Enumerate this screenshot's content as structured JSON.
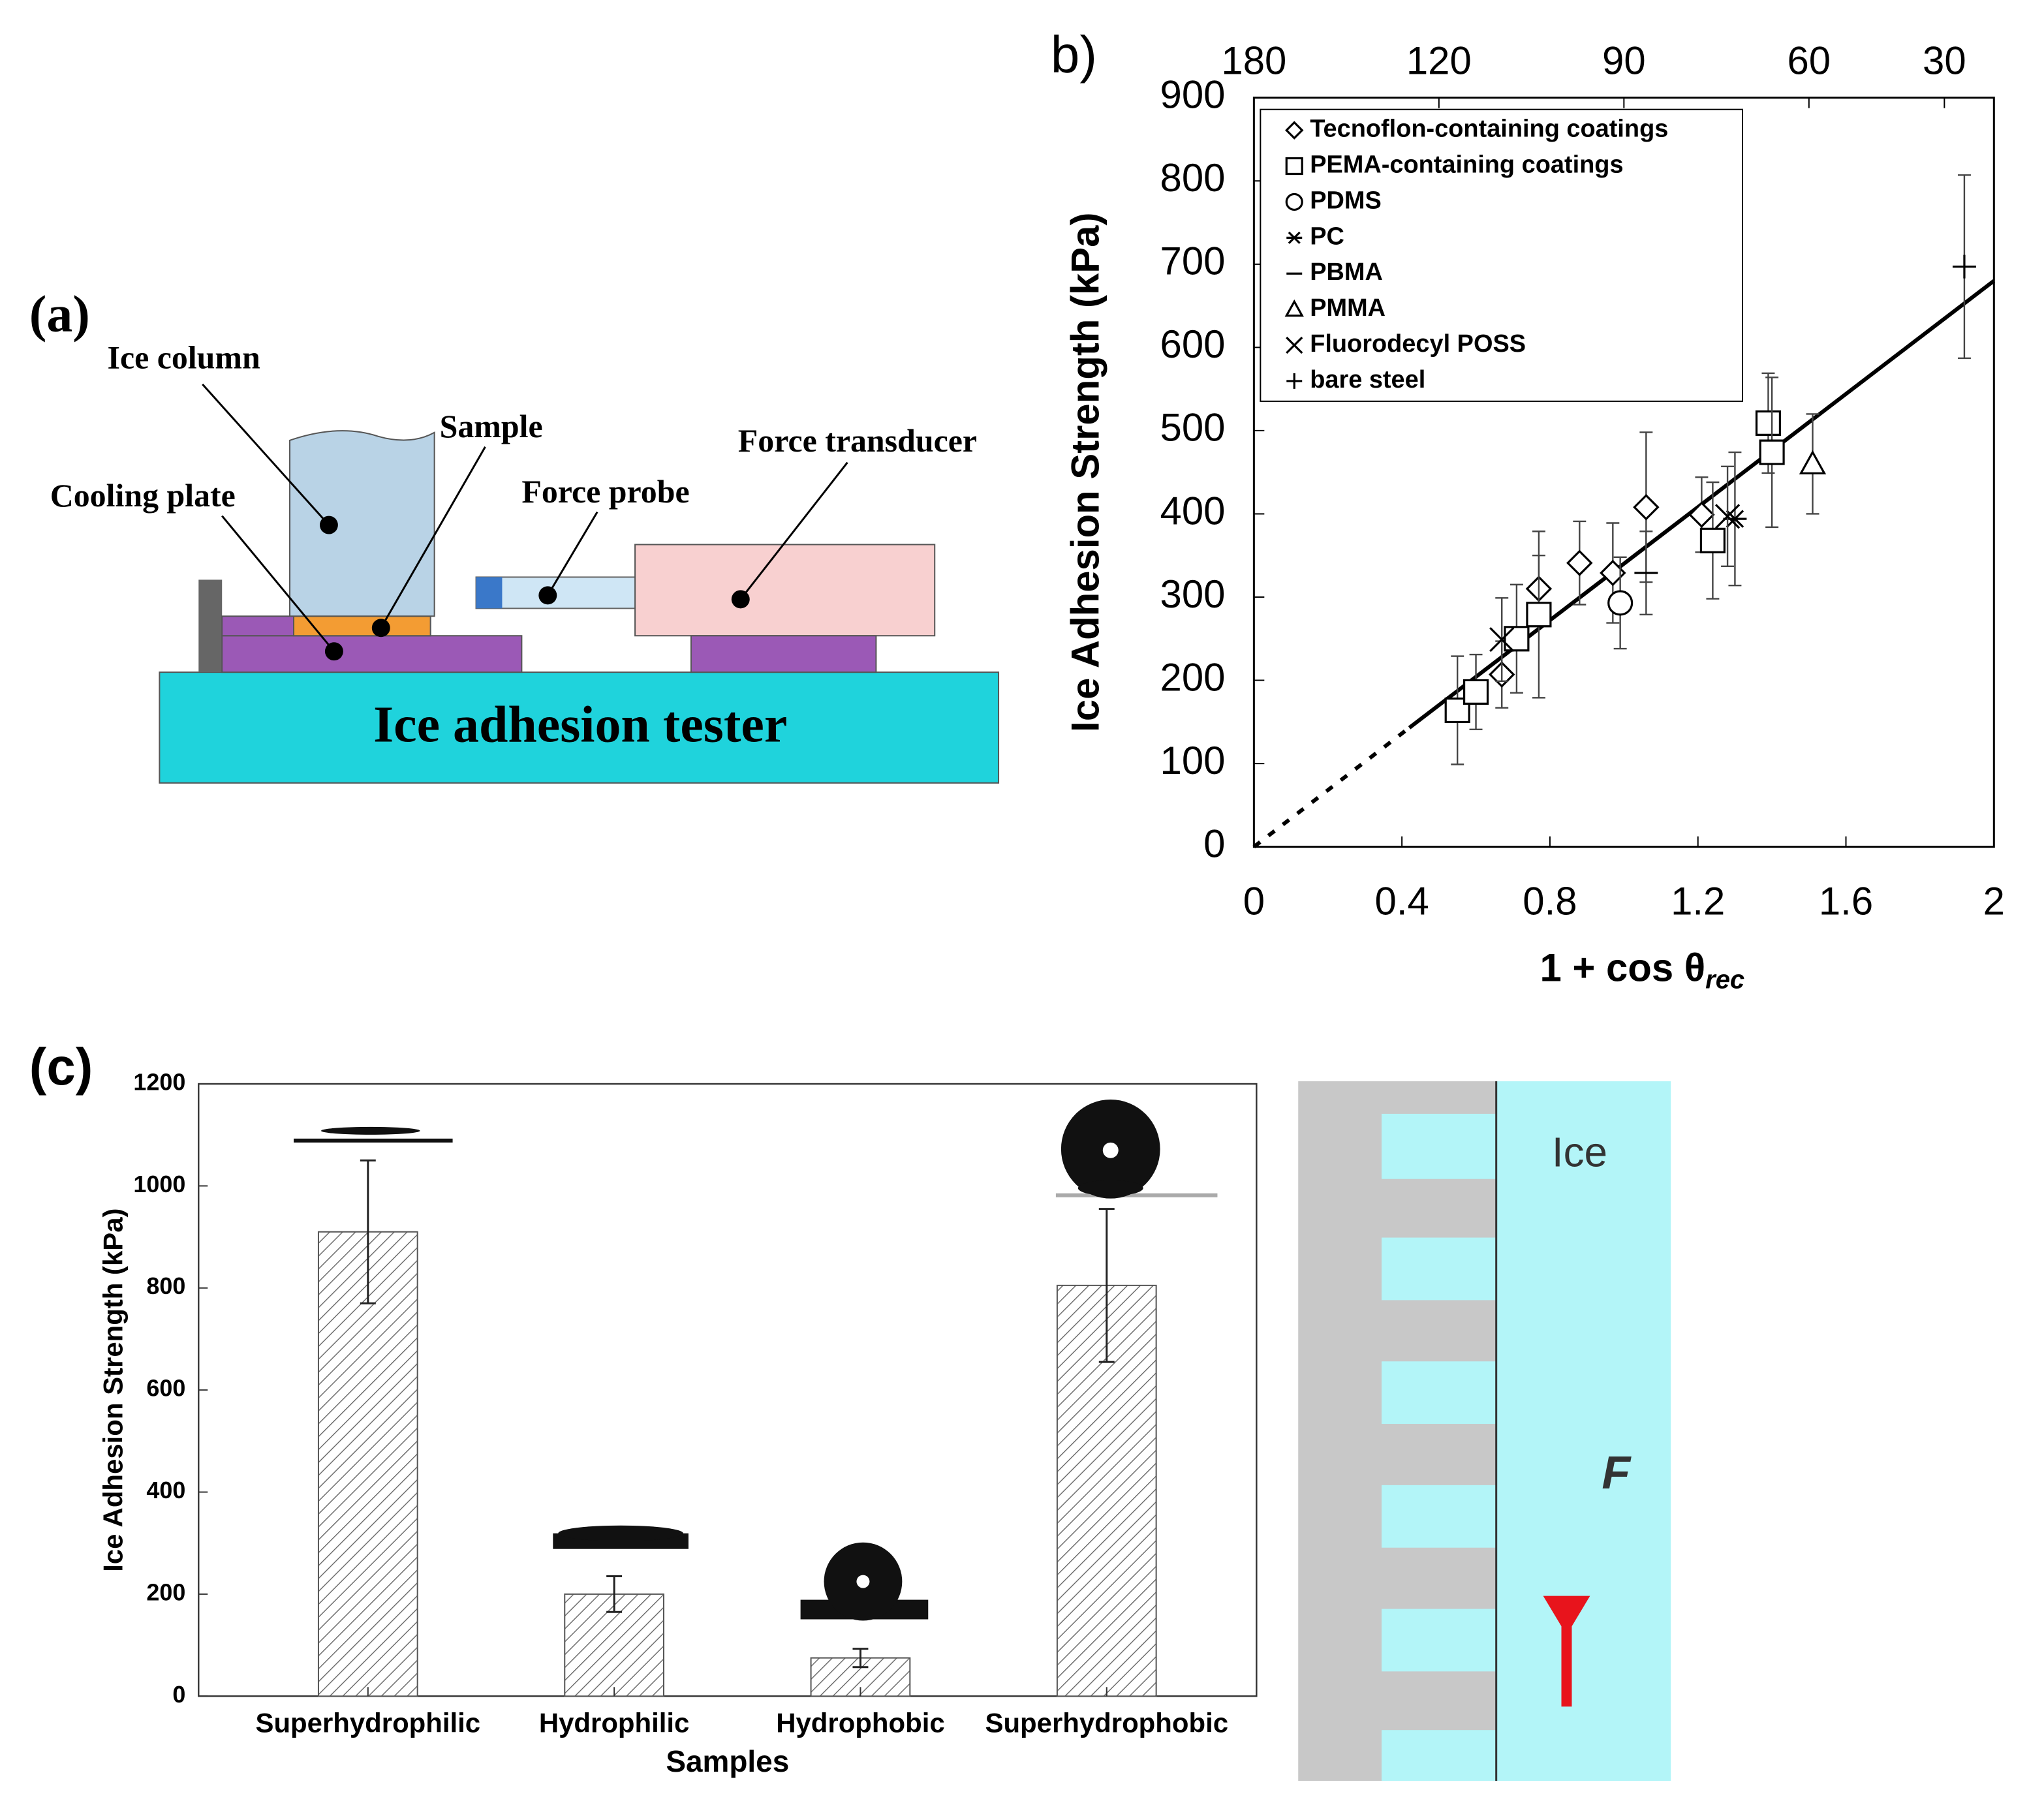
{
  "diagram_a": {
    "panel_label": "(a)",
    "ice_column": "Ice column",
    "sample": "Sample",
    "force_transducer": "Force transducer",
    "cooling_plate": "Cooling plate",
    "force_probe": "Force probe",
    "tester": "Ice adhesion tester"
  },
  "diagram_c": {
    "ice": "Ice",
    "force": "F"
  },
  "chart_data": [
    {
      "type": "scatter",
      "panel_label": "b)",
      "ylabel": "Ice Adhesion Strength (kPa)",
      "xlabel": "1 + cos θ",
      "xlabel_sub": "rec",
      "xlim": [
        0,
        2
      ],
      "xticks": [
        0,
        0.4,
        0.8,
        1.2,
        1.6,
        2
      ],
      "ylim": [
        0,
        900
      ],
      "yticks": [
        0,
        100,
        200,
        300,
        400,
        500,
        600,
        700,
        800,
        900
      ],
      "x2ticks": [
        180,
        120,
        90,
        60,
        30
      ],
      "fit_line": [
        {
          "style": "dashed",
          "x": [
            0,
            0.42
          ],
          "values": [
            0,
            143
          ]
        },
        {
          "style": "solid",
          "x": [
            0.42,
            2
          ],
          "values": [
            143,
            680
          ]
        }
      ],
      "series": [
        {
          "name": "Tecnoflon-containing coatings",
          "marker": "diamond",
          "x": [
            1.06,
            0.88,
            0.97,
            0.77,
            0.67,
            1.21
          ],
          "values": [
            408,
            341,
            329,
            310,
            207,
            399
          ],
          "yerr": [
            90,
            50,
            60,
            40,
            40,
            45
          ]
        },
        {
          "name": "PEMA-containing coatings",
          "marker": "square",
          "x": [
            0.55,
            0.6,
            0.71,
            0.77,
            1.24,
            1.39,
            1.4
          ],
          "values": [
            164,
            186,
            250,
            279,
            368,
            509,
            474
          ],
          "yerr": [
            65,
            45,
            65,
            100,
            70,
            60,
            90
          ]
        },
        {
          "name": "PDMS",
          "marker": "circle",
          "x": [
            0.99
          ],
          "values": [
            293
          ],
          "yerr": [
            55
          ]
        },
        {
          "name": "PC",
          "marker": "asterisk",
          "x": [
            1.3
          ],
          "values": [
            394
          ],
          "yerr": [
            80
          ]
        },
        {
          "name": "PBMA",
          "marker": "dash",
          "x": [
            1.06
          ],
          "values": [
            329
          ],
          "yerr": [
            50
          ]
        },
        {
          "name": "PMMA",
          "marker": "triangle",
          "x": [
            1.51
          ],
          "values": [
            460
          ],
          "yerr": [
            60
          ]
        },
        {
          "name": "Fluorodecyl POSS",
          "marker": "cross",
          "x": [
            0.67,
            1.28
          ],
          "values": [
            249,
            397
          ],
          "yerr": [
            50,
            60
          ]
        },
        {
          "name": "bare steel",
          "marker": "plus",
          "x": [
            1.92
          ],
          "values": [
            697
          ],
          "yerr": [
            110
          ]
        }
      ]
    },
    {
      "type": "bar",
      "ylabel": "Ice Adhesion Strength (kPa)",
      "xlabel": "Samples",
      "panel_label": "(c)",
      "categories": [
        "Superhydrophilic",
        "Hydrophilic",
        "Hydrophobic",
        "Superhydrophobic"
      ],
      "values": [
        910,
        200,
        75,
        805
      ],
      "yerr": [
        140,
        35,
        18,
        150
      ],
      "ylim": [
        0,
        1200
      ],
      "yticks": [
        0,
        200,
        400,
        600,
        800,
        1000,
        1200
      ]
    }
  ]
}
